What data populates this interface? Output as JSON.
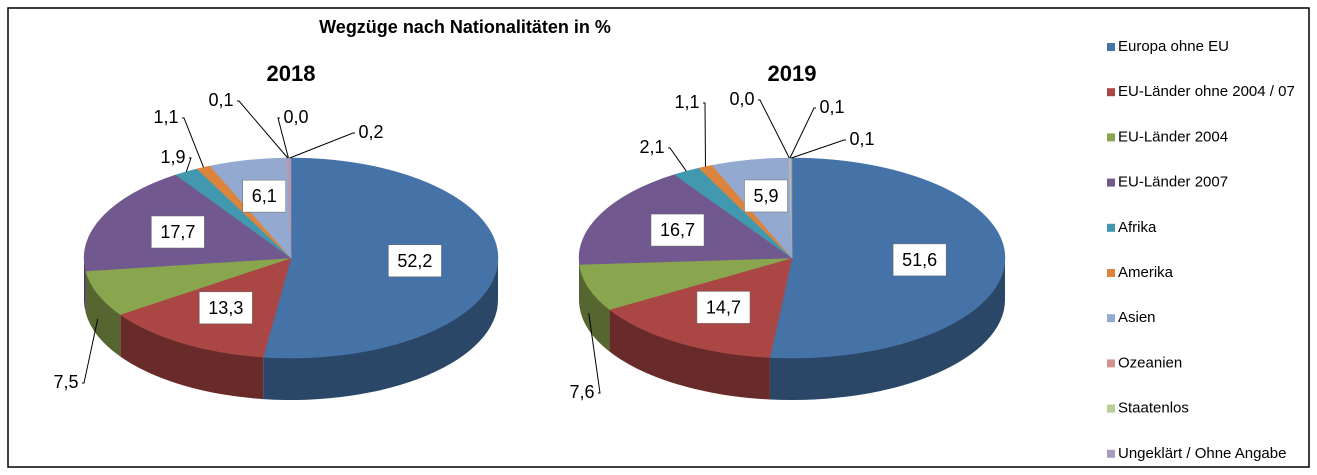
{
  "chart_data": {
    "type": "pie",
    "title": "Wegzüge nach Nationalitäten in %",
    "categories": [
      "Europa ohne EU",
      "EU-Länder ohne 2004 / 07",
      "EU-Länder 2004",
      "EU-Länder 2007",
      "Afrika",
      "Amerika",
      "Asien",
      "Ozeanien",
      "Staatenlos",
      "Ungeklärt / Ohne Angabe"
    ],
    "colors": [
      "#4572A7",
      "#AA4643",
      "#89A54E",
      "#71588F",
      "#4198AF",
      "#DB843D",
      "#93A9CF",
      "#D19392",
      "#B9CD96",
      "#A99BBD"
    ],
    "series": [
      {
        "name": "2018",
        "values": [
          52.2,
          13.3,
          7.5,
          17.7,
          1.9,
          1.1,
          6.1,
          0.1,
          0.0,
          0.2
        ],
        "value_labels": [
          "52,2",
          "13,3",
          "7,5",
          "17,7",
          "1,9",
          "1,1",
          "6,1",
          "0,1",
          "0,0",
          "0,2"
        ]
      },
      {
        "name": "2019",
        "values": [
          51.6,
          14.7,
          7.6,
          16.7,
          2.1,
          1.1,
          5.9,
          0.0,
          0.1,
          0.1
        ],
        "value_labels": [
          "51,6",
          "14,7",
          "7,6",
          "16,7",
          "2,1",
          "1,1",
          "5,9",
          "0,0",
          "0,1",
          "0,1"
        ]
      }
    ]
  }
}
